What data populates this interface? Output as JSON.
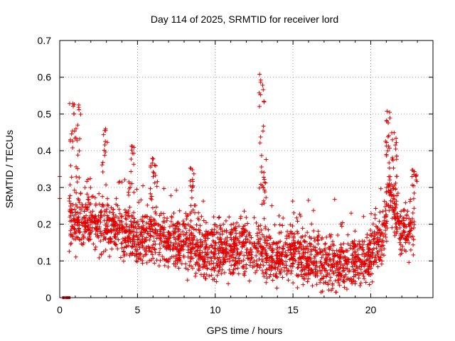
{
  "chart_data": {
    "type": "scatter",
    "title": "Day 114 of 2025, SRMTID for receiver lord",
    "xlabel": "GPS time / hours",
    "ylabel": "SRMTID / TECUs",
    "xlim": [
      0,
      24
    ],
    "ylim": [
      0,
      0.7
    ],
    "xticks": [
      0,
      5,
      10,
      15,
      20
    ],
    "yticks": [
      0,
      0.1,
      0.2,
      0.3,
      0.4,
      0.5,
      0.6,
      0.7
    ],
    "grid": true,
    "marker": "+",
    "color": "#e00000",
    "series": [
      {
        "name": "SRMTID",
        "trend": [
          [
            0.0,
            0.3
          ],
          [
            0.6,
            0.22
          ],
          [
            1.2,
            0.2
          ],
          [
            2.0,
            0.21
          ],
          [
            3.0,
            0.19
          ],
          [
            4.0,
            0.18
          ],
          [
            5.0,
            0.16
          ],
          [
            6.0,
            0.17
          ],
          [
            7.0,
            0.15
          ],
          [
            8.0,
            0.15
          ],
          [
            9.0,
            0.13
          ],
          [
            10.0,
            0.12
          ],
          [
            11.0,
            0.13
          ],
          [
            12.0,
            0.14
          ],
          [
            13.0,
            0.12
          ],
          [
            14.0,
            0.11
          ],
          [
            15.0,
            0.12
          ],
          [
            16.0,
            0.11
          ],
          [
            17.0,
            0.09
          ],
          [
            18.0,
            0.09
          ],
          [
            19.0,
            0.1
          ],
          [
            20.0,
            0.11
          ],
          [
            20.8,
            0.17
          ],
          [
            21.2,
            0.3
          ],
          [
            21.6,
            0.22
          ],
          [
            22.0,
            0.17
          ],
          [
            22.8,
            0.18
          ]
        ],
        "spread": 0.07,
        "x_range": [
          0.6,
          22.8
        ],
        "spikes": [
          [
            0.8,
            0.53
          ],
          [
            1.2,
            0.53
          ],
          [
            2.9,
            0.46
          ],
          [
            4.6,
            0.42
          ],
          [
            6.0,
            0.38
          ],
          [
            8.5,
            0.37
          ],
          [
            13.0,
            0.61
          ],
          [
            13.1,
            0.42
          ],
          [
            21.1,
            0.52
          ],
          [
            21.5,
            0.45
          ],
          [
            22.8,
            0.35
          ]
        ],
        "lows": [
          [
            0.25,
            0.0
          ],
          [
            0.45,
            0.0
          ],
          [
            0.6,
            0.0
          ]
        ],
        "outliers": [
          [
            0.0,
            0.33
          ],
          [
            0.0,
            0.27
          ]
        ]
      }
    ]
  }
}
